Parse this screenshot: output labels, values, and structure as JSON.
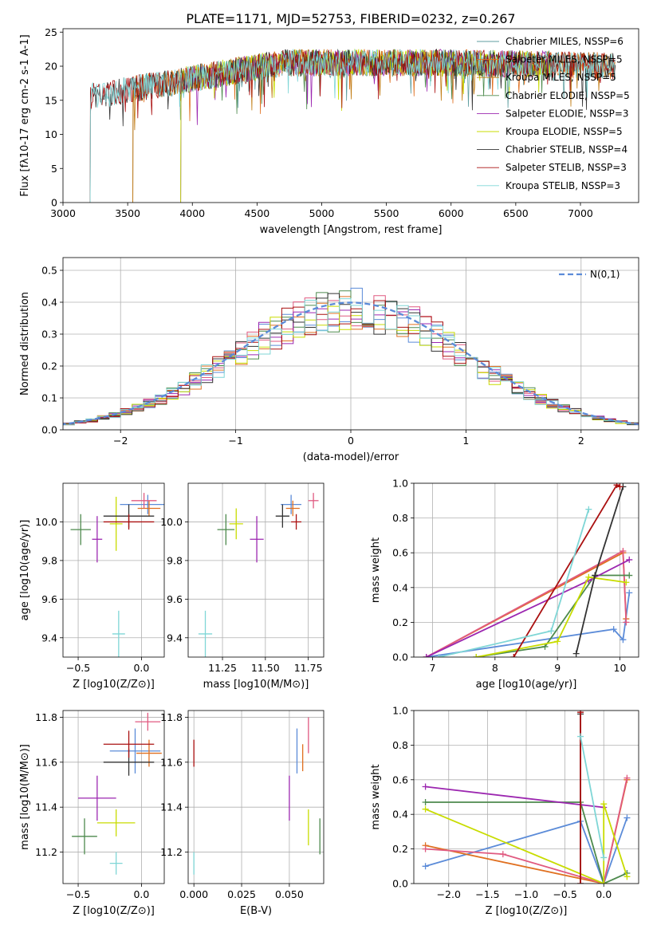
{
  "title": "PLATE=1171, MJD=52753, FIBERID=0232, z=0.267",
  "colors": [
    "#00a0b0",
    "#e0a000",
    "#c06000",
    "#2e7d32",
    "#9c27b0",
    "#c8dc00",
    "#222222",
    "#aa0000",
    "#5ad0d0",
    "#4169e1",
    "#e05a80"
  ],
  "chart_data": [
    {
      "id": "spectrum",
      "type": "line",
      "xlabel": "wavelength [Angstrom, rest frame]",
      "ylabel": "Flux [f$_\\lambda$10$^{-17}$ erg cm$^{-2}$ s$^{-1}$ A$^{-1}$]",
      "xlim": [
        3000,
        7450
      ],
      "ylim": [
        0,
        25.5
      ],
      "xticks": [
        "3000",
        "3500",
        "4000",
        "4500",
        "5000",
        "5500",
        "6000",
        "6500",
        "7000"
      ],
      "yticks": [
        "0",
        "5",
        "10",
        "15",
        "20",
        "25"
      ],
      "grid": false,
      "legend_location": "top-right",
      "series": [
        {
          "name": "Chabrier MILES, N$_{SSP}$=6",
          "color": "#5f9ea0",
          "start": 3540,
          "end": 7270
        },
        {
          "name": "Salpeter MILES, N$_{SSP}$=5",
          "color": "#e07020",
          "start": 3540,
          "end": 7270
        },
        {
          "name": "Kroupa MILES, N$_{SSP}$=5",
          "color": "#c07a10",
          "start": 3540,
          "end": 7270
        },
        {
          "name": "Chabrier ELODIE, N$_{SSP}$=5",
          "color": "#4d8a4d",
          "start": 3910,
          "end": 6790
        },
        {
          "name": "Salpeter ELODIE, N$_{SSP}$=3",
          "color": "#9c27b0",
          "start": 3910,
          "end": 6790
        },
        {
          "name": "Kroupa ELODIE, N$_{SSP}$=5",
          "color": "#c8dc00",
          "start": 3910,
          "end": 6790
        },
        {
          "name": "Chabrier STELIB, N$_{SSP}$=4",
          "color": "#333333",
          "start": 3210,
          "end": 7270
        },
        {
          "name": "Salpeter STELIB, N$_{SSP}$=3",
          "color": "#aa1010",
          "start": 3210,
          "end": 7270
        },
        {
          "name": "Kroupa STELIB, N$_{SSP}$=3",
          "color": "#7fd6d6",
          "start": 3210,
          "end": 7270
        }
      ]
    },
    {
      "id": "residuals",
      "type": "line",
      "xlabel": "(data-model)/error",
      "ylabel": "Normed distribution",
      "xlim": [
        -2.5,
        2.5
      ],
      "ylim": [
        0,
        0.54
      ],
      "xticks": [
        "-2",
        "-1",
        "0",
        "1",
        "2"
      ],
      "yticks": [
        "0.0",
        "0.1",
        "0.2",
        "0.3",
        "0.4",
        "0.5"
      ],
      "grid": true,
      "legend_location": "top-right",
      "series": [
        {
          "name": "$\\mathcal{N}(0,1)$",
          "color": "#5b8bd8",
          "style": "dashed"
        }
      ],
      "bin_width": 0.1,
      "histogram_colors": [
        "#5b8bd8",
        "#e07020",
        "#e05a80",
        "#4d8a4d",
        "#9c27b0",
        "#c8dc00",
        "#333333",
        "#aa1010",
        "#7fd6d6"
      ]
    },
    {
      "id": "age_vs_Z",
      "type": "scatter",
      "xlabel": "Z [log$_{10}$($Z/Z_\\odot$)]",
      "ylabel": "age  [log$_{10}$($age/yr$)]",
      "xlim": [
        -0.62,
        0.18
      ],
      "ylim": [
        9.3,
        10.2
      ],
      "xticks": [
        "-0.5",
        "0.0"
      ],
      "yticks": [
        "9.4",
        "9.6",
        "9.8",
        "10.0"
      ],
      "grid": true,
      "points": [
        {
          "x": 0.05,
          "y": 10.09,
          "xerr": 0.22,
          "yerr": 0.05,
          "color": "#5b8bd8"
        },
        {
          "x": 0.06,
          "y": 10.07,
          "xerr": 0.09,
          "yerr": 0.04,
          "color": "#e07020"
        },
        {
          "x": 0.02,
          "y": 10.11,
          "xerr": 0.1,
          "yerr": 0.04,
          "color": "#e05a80"
        },
        {
          "x": -0.48,
          "y": 9.96,
          "xerr": 0.08,
          "yerr": 0.08,
          "color": "#4d8a4d"
        },
        {
          "x": -0.35,
          "y": 9.91,
          "xerr": 0.04,
          "yerr": 0.12,
          "color": "#9c27b0"
        },
        {
          "x": -0.2,
          "y": 9.99,
          "xerr": 0.05,
          "yerr": 0.14,
          "color": "#c8dc00"
        },
        {
          "x": -0.1,
          "y": 10.03,
          "xerr": 0.2,
          "yerr": 0.06,
          "color": "#333333"
        },
        {
          "x": -0.1,
          "y": 10.0,
          "xerr": 0.2,
          "yerr": 0.04,
          "color": "#aa1010"
        },
        {
          "x": -0.18,
          "y": 9.42,
          "xerr": 0.05,
          "yerr": 0.12,
          "color": "#7fd6d6"
        }
      ]
    },
    {
      "id": "age_vs_mass",
      "type": "scatter",
      "xlabel": "mass [log$_{10}$($M/M_\\odot$)]",
      "ylabel": "",
      "xlim": [
        11.05,
        11.84
      ],
      "ylim": [
        9.3,
        10.2
      ],
      "xticks": [
        "11.25",
        "11.50",
        "11.75"
      ],
      "yticks": [
        "9.4",
        "9.6",
        "9.8",
        "10.0"
      ],
      "grid": true,
      "points": [
        {
          "x": 11.65,
          "y": 10.09,
          "xerr": 0.06,
          "yerr": 0.05,
          "color": "#5b8bd8"
        },
        {
          "x": 11.66,
          "y": 10.07,
          "xerr": 0.04,
          "yerr": 0.04,
          "color": "#e07020"
        },
        {
          "x": 11.78,
          "y": 10.11,
          "xerr": 0.03,
          "yerr": 0.04,
          "color": "#e05a80"
        },
        {
          "x": 11.27,
          "y": 9.96,
          "xerr": 0.05,
          "yerr": 0.08,
          "color": "#4d8a4d"
        },
        {
          "x": 11.45,
          "y": 9.91,
          "xerr": 0.04,
          "yerr": 0.12,
          "color": "#9c27b0"
        },
        {
          "x": 11.33,
          "y": 9.99,
          "xerr": 0.04,
          "yerr": 0.08,
          "color": "#c8dc00"
        },
        {
          "x": 11.6,
          "y": 10.03,
          "xerr": 0.04,
          "yerr": 0.06,
          "color": "#333333"
        },
        {
          "x": 11.68,
          "y": 10.0,
          "xerr": 0.03,
          "yerr": 0.04,
          "color": "#aa1010"
        },
        {
          "x": 11.15,
          "y": 9.42,
          "xerr": 0.04,
          "yerr": 0.12,
          "color": "#7fd6d6"
        }
      ]
    },
    {
      "id": "massweight_vs_age",
      "type": "line",
      "xlabel": "age  [log$_{10}$($age/yr$)]",
      "ylabel": "mass weight",
      "xlim": [
        6.7,
        10.3
      ],
      "ylim": [
        0,
        1.0
      ],
      "xticks": [
        "7",
        "8",
        "9",
        "10"
      ],
      "yticks": [
        "0.0",
        "0.2",
        "0.4",
        "0.6",
        "0.8",
        "1.0"
      ],
      "grid": true,
      "series": [
        {
          "color": "#5b8bd8",
          "x": [
            6.9,
            9.9,
            10.05,
            10.15
          ],
          "y": [
            0.0,
            0.16,
            0.1,
            0.37
          ]
        },
        {
          "color": "#e07020",
          "x": [
            6.9,
            10.05,
            10.1
          ],
          "y": [
            0.0,
            0.6,
            0.22
          ]
        },
        {
          "color": "#e05a80",
          "x": [
            6.9,
            10.05,
            10.1
          ],
          "y": [
            0.0,
            0.61,
            0.2
          ]
        },
        {
          "color": "#4d8a4d",
          "x": [
            7.7,
            8.8,
            9.6,
            10.15
          ],
          "y": [
            0.0,
            0.06,
            0.47,
            0.47
          ]
        },
        {
          "color": "#9c27b0",
          "x": [
            6.9,
            9.5,
            10.15
          ],
          "y": [
            0.0,
            0.44,
            0.56
          ]
        },
        {
          "color": "#c8dc00",
          "x": [
            7.7,
            9.0,
            9.5,
            10.1
          ],
          "y": [
            0.0,
            0.09,
            0.46,
            0.43
          ]
        },
        {
          "color": "#333333",
          "x": [
            9.3,
            9.6,
            10.05
          ],
          "y": [
            0.02,
            0.47,
            0.98
          ]
        },
        {
          "color": "#aa1010",
          "x": [
            8.3,
            9.95,
            10.0
          ],
          "y": [
            0.0,
            0.99,
            0.98
          ]
        },
        {
          "color": "#7fd6d6",
          "x": [
            7.1,
            8.9,
            9.5
          ],
          "y": [
            0.0,
            0.15,
            0.85
          ]
        }
      ]
    },
    {
      "id": "mass_vs_Z",
      "type": "scatter",
      "xlabel": "Z [log$_{10}$($Z/Z_\\odot$)]",
      "ylabel": "mass [log$_{10}$($M/M_\\odot$)]",
      "xlim": [
        -0.62,
        0.18
      ],
      "ylim": [
        11.06,
        11.83
      ],
      "xticks": [
        "-0.5",
        "0.0"
      ],
      "yticks": [
        "11.2",
        "11.4",
        "11.6",
        "11.8"
      ],
      "grid": true,
      "points": [
        {
          "x": -0.05,
          "y": 11.65,
          "xerr": 0.2,
          "yerr": 0.1,
          "color": "#5b8bd8"
        },
        {
          "x": 0.06,
          "y": 11.64,
          "xerr": 0.1,
          "yerr": 0.06,
          "color": "#e07020"
        },
        {
          "x": 0.05,
          "y": 11.78,
          "xerr": 0.1,
          "yerr": 0.04,
          "color": "#e05a80"
        },
        {
          "x": -0.45,
          "y": 11.27,
          "xerr": 0.1,
          "yerr": 0.08,
          "color": "#4d8a4d"
        },
        {
          "x": -0.35,
          "y": 11.44,
          "xerr": 0.15,
          "yerr": 0.1,
          "color": "#9c27b0"
        },
        {
          "x": -0.2,
          "y": 11.33,
          "xerr": 0.15,
          "yerr": 0.06,
          "color": "#c8dc00"
        },
        {
          "x": -0.1,
          "y": 11.6,
          "xerr": 0.2,
          "yerr": 0.06,
          "color": "#333333"
        },
        {
          "x": -0.1,
          "y": 11.68,
          "xerr": 0.2,
          "yerr": 0.06,
          "color": "#aa1010"
        },
        {
          "x": -0.2,
          "y": 11.15,
          "xerr": 0.05,
          "yerr": 0.05,
          "color": "#7fd6d6"
        }
      ]
    },
    {
      "id": "mass_vs_ebv",
      "type": "scatter",
      "xlabel": "E(B-V)",
      "ylabel": "",
      "xlim": [
        -0.003,
        0.068
      ],
      "ylim": [
        11.06,
        11.83
      ],
      "xticks": [
        "0.000",
        "0.025",
        "0.050"
      ],
      "yticks": [
        "11.2",
        "11.4",
        "11.6",
        "11.8"
      ],
      "grid": true,
      "points": [
        {
          "x": 0.054,
          "y": 11.65,
          "xerr": 0.0,
          "yerr": 0.1,
          "color": "#5b8bd8"
        },
        {
          "x": 0.057,
          "y": 11.62,
          "xerr": 0.0,
          "yerr": 0.06,
          "color": "#e07020"
        },
        {
          "x": 0.06,
          "y": 11.72,
          "xerr": 0.0,
          "yerr": 0.08,
          "color": "#e05a80"
        },
        {
          "x": 0.066,
          "y": 11.27,
          "xerr": 0.0,
          "yerr": 0.08,
          "color": "#4d8a4d"
        },
        {
          "x": 0.05,
          "y": 11.44,
          "xerr": 0.0,
          "yerr": 0.1,
          "color": "#9c27b0"
        },
        {
          "x": 0.06,
          "y": 11.31,
          "xerr": 0.0,
          "yerr": 0.08,
          "color": "#c8dc00"
        },
        {
          "x": 0.0,
          "y": 11.64,
          "xerr": 0.0,
          "yerr": 0.06,
          "color": "#aa1010"
        },
        {
          "x": 0.0,
          "y": 11.15,
          "xerr": 0.0,
          "yerr": 0.05,
          "color": "#7fd6d6"
        }
      ]
    },
    {
      "id": "massweight_vs_Z",
      "type": "line",
      "xlabel": "Z [log$_{10}$($Z/Z_\\odot$)]",
      "ylabel": "mass weight",
      "xlim": [
        -2.45,
        0.45
      ],
      "ylim": [
        0,
        1.0
      ],
      "xticks": [
        "-2.0",
        "-1.5",
        "-1.0",
        "-0.5",
        "0.0"
      ],
      "yticks": [
        "0.0",
        "0.2",
        "0.4",
        "0.6",
        "0.8",
        "1.0"
      ],
      "grid": true,
      "series": [
        {
          "color": "#5b8bd8",
          "x": [
            -2.3,
            -0.3,
            0.0,
            0.3
          ],
          "y": [
            0.1,
            0.36,
            0.0,
            0.38
          ]
        },
        {
          "color": "#e07020",
          "x": [
            -2.3,
            0.0,
            0.3
          ],
          "y": [
            0.22,
            0.0,
            0.6
          ]
        },
        {
          "color": "#e05a80",
          "x": [
            -2.3,
            -1.3,
            0.0,
            0.3
          ],
          "y": [
            0.2,
            0.17,
            0.0,
            0.61
          ]
        },
        {
          "color": "#4d8a4d",
          "x": [
            -2.3,
            -0.3,
            0.0,
            0.3
          ],
          "y": [
            0.47,
            0.47,
            0.0,
            0.06
          ]
        },
        {
          "color": "#9c27b0",
          "x": [
            -2.3,
            0.0
          ],
          "y": [
            0.56,
            0.44
          ]
        },
        {
          "color": "#c8dc00",
          "x": [
            -2.3,
            0.0,
            0.0,
            0.3
          ],
          "y": [
            0.43,
            0.0,
            0.46,
            0.04
          ]
        },
        {
          "color": "#333333",
          "x": [
            -0.3,
            -0.3
          ],
          "y": [
            0.0,
            0.98
          ]
        },
        {
          "color": "#aa1010",
          "x": [
            -0.3,
            -0.3
          ],
          "y": [
            0.0,
            0.99
          ]
        },
        {
          "color": "#7fd6d6",
          "x": [
            -0.3,
            0.0
          ],
          "y": [
            0.85,
            0.15
          ]
        }
      ]
    }
  ]
}
